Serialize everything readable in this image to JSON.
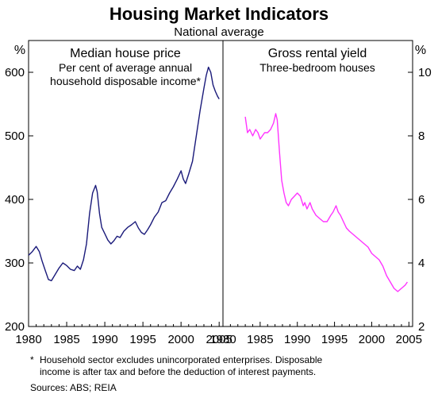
{
  "title": "Housing Market Indicators",
  "subtitle": "National average",
  "footnote_marker": "*",
  "footnote_line1": "Household sector excludes unincorporated enterprises. Disposable",
  "footnote_line2": "income is after tax and before the deduction of interest payments.",
  "sources": "Sources: ABS; REIA",
  "chart_data": [
    {
      "type": "line",
      "title": "Median house price",
      "subtitle_line1": "Per cent of average annual",
      "subtitle_line2": "household disposable income*",
      "yunit": "%",
      "xlim": [
        1980,
        2005.5
      ],
      "ylim": [
        200,
        650
      ],
      "xticks": [
        1980,
        1985,
        1990,
        1995,
        2000,
        2005
      ],
      "yticks": [
        200,
        300,
        400,
        500,
        600
      ],
      "color": "#1a1a7a",
      "series": [
        {
          "x": [
            1980.0,
            1980.5,
            1981.0,
            1981.4,
            1981.8,
            1982.2,
            1982.6,
            1983.0,
            1983.5,
            1984.0,
            1984.5,
            1985.0,
            1985.5,
            1986.0,
            1986.4,
            1986.8,
            1987.2,
            1987.6,
            1988.0,
            1988.4,
            1988.8,
            1989.0,
            1989.3,
            1989.6,
            1990.0,
            1990.4,
            1990.8,
            1991.2,
            1991.6,
            1992.0,
            1992.5,
            1993.0,
            1993.5,
            1994.0,
            1994.4,
            1994.8,
            1995.2,
            1995.6,
            1996.0,
            1996.5,
            1997.0,
            1997.5,
            1998.0,
            1998.5,
            1999.0,
            1999.5,
            2000.0,
            2000.3,
            2000.6,
            2001.0,
            2001.5,
            2002.0,
            2002.5,
            2003.0,
            2003.3,
            2003.6,
            2003.9,
            2004.2,
            2004.5,
            2004.8,
            2005.0
          ],
          "y": [
            312,
            318,
            326,
            318,
            302,
            288,
            274,
            272,
            282,
            292,
            300,
            296,
            290,
            288,
            295,
            290,
            305,
            330,
            378,
            410,
            422,
            412,
            378,
            356,
            346,
            336,
            330,
            335,
            342,
            340,
            350,
            356,
            360,
            365,
            355,
            348,
            345,
            352,
            360,
            372,
            380,
            395,
            398,
            410,
            420,
            432,
            445,
            432,
            425,
            440,
            460,
            500,
            540,
            575,
            595,
            608,
            600,
            580,
            570,
            562,
            558
          ]
        }
      ]
    },
    {
      "type": "line",
      "title": "Gross rental yield",
      "subtitle_line1": "Three-bedroom houses",
      "yunit": "%",
      "xlim": [
        1980,
        2005.5
      ],
      "ylim": [
        2,
        11
      ],
      "xticks": [
        1980,
        1985,
        1990,
        1995,
        2000,
        2005
      ],
      "yticks": [
        2,
        4,
        6,
        8,
        10
      ],
      "color": "#ff33ff",
      "series": [
        {
          "x": [
            1983.0,
            1983.3,
            1983.6,
            1984.0,
            1984.4,
            1984.7,
            1985.0,
            1985.3,
            1985.6,
            1986.0,
            1986.4,
            1986.8,
            1987.1,
            1987.3,
            1987.6,
            1987.9,
            1988.2,
            1988.5,
            1988.8,
            1989.2,
            1989.6,
            1990.0,
            1990.4,
            1990.8,
            1991.0,
            1991.3,
            1991.7,
            1992.0,
            1992.5,
            1993.0,
            1993.5,
            1994.0,
            1994.5,
            1994.8,
            1995.2,
            1995.5,
            1995.8,
            1996.2,
            1996.6,
            1997.0,
            1997.5,
            1998.0,
            1998.5,
            1999.0,
            1999.5,
            2000.0,
            2000.5,
            2001.0,
            2001.5,
            2002.0,
            2002.5,
            2003.0,
            2003.5,
            2004.0,
            2004.5,
            2004.8
          ],
          "y": [
            8.6,
            8.1,
            8.2,
            8.0,
            8.2,
            8.1,
            7.9,
            8.0,
            8.1,
            8.1,
            8.2,
            8.4,
            8.7,
            8.5,
            7.5,
            6.6,
            6.2,
            5.9,
            5.8,
            6.0,
            6.1,
            6.2,
            6.1,
            5.8,
            5.9,
            5.7,
            5.9,
            5.7,
            5.5,
            5.4,
            5.3,
            5.3,
            5.5,
            5.6,
            5.8,
            5.6,
            5.5,
            5.3,
            5.1,
            5.0,
            4.9,
            4.8,
            4.7,
            4.6,
            4.5,
            4.3,
            4.2,
            4.1,
            3.9,
            3.6,
            3.4,
            3.2,
            3.1,
            3.2,
            3.3,
            3.4
          ]
        }
      ]
    }
  ]
}
